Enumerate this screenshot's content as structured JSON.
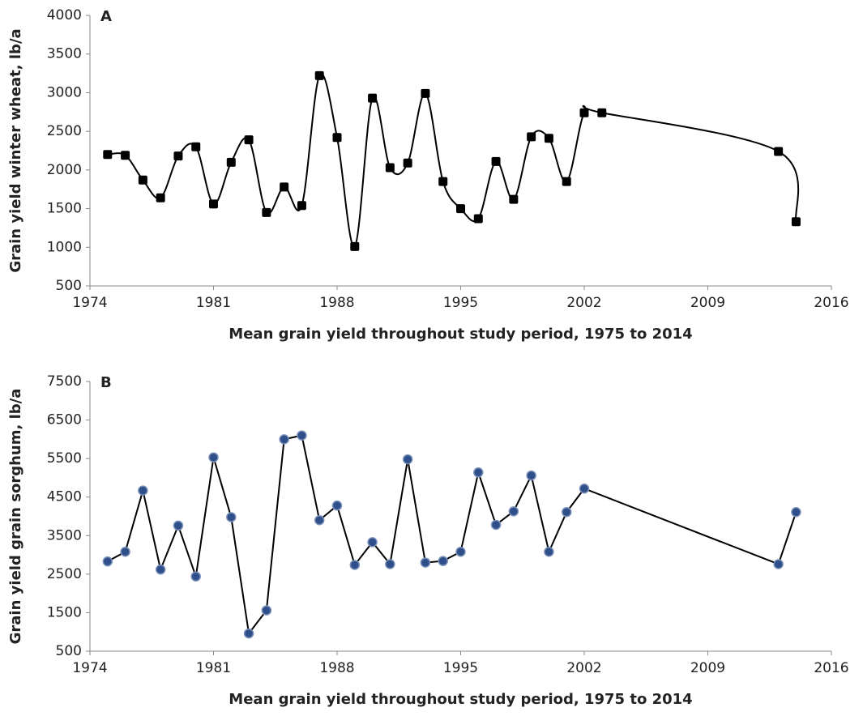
{
  "chart_data": [
    {
      "type": "line",
      "panel_label": "A",
      "smooth": true,
      "marker": "square",
      "color": "#000000",
      "marker_color": "#000000",
      "y_label": "Grain yield winter wheat, lb/a",
      "x_label": "Mean grain yield throughout study period, 1975 to 2014",
      "x": [
        1975,
        1976,
        1977,
        1978,
        1979,
        1980,
        1981,
        1982,
        1983,
        1984,
        1985,
        1986,
        1987,
        1988,
        1989,
        1990,
        1991,
        1992,
        1993,
        1994,
        1995,
        1996,
        1997,
        1998,
        1999,
        2000,
        2001,
        2002,
        2003,
        2013,
        2014
      ],
      "values": [
        2200,
        2190,
        1870,
        1640,
        2180,
        2300,
        1560,
        2100,
        2390,
        1450,
        1780,
        1540,
        3220,
        2420,
        1010,
        2930,
        2030,
        2090,
        2990,
        1850,
        1500,
        1370,
        2110,
        1620,
        2430,
        2410,
        1850,
        2740,
        2740,
        2240,
        1330
      ],
      "xlim": [
        1974,
        2016
      ],
      "xticks": [
        1974,
        1981,
        1988,
        1995,
        2002,
        2009,
        2016
      ],
      "ylim": [
        500,
        4000
      ],
      "yticks": [
        500,
        1000,
        1500,
        2000,
        2500,
        3000,
        3500,
        4000
      ]
    },
    {
      "type": "line",
      "panel_label": "B",
      "smooth": false,
      "marker": "circle",
      "color": "#000000",
      "marker_color": "#2f4f8a",
      "y_label": "Grain yield grain sorghum, lb/a",
      "x_label": "Mean grain yield throughout study period, 1975 to 2014",
      "x": [
        1975,
        1976,
        1977,
        1978,
        1979,
        1980,
        1981,
        1982,
        1983,
        1984,
        1985,
        1986,
        1987,
        1988,
        1989,
        1990,
        1991,
        1992,
        1993,
        1994,
        1995,
        1996,
        1997,
        1998,
        1999,
        2000,
        2001,
        2002,
        2013,
        2014
      ],
      "values": [
        2830,
        3080,
        4670,
        2620,
        3760,
        2440,
        5530,
        3980,
        960,
        1560,
        6000,
        6100,
        3900,
        4280,
        2740,
        3330,
        2760,
        5480,
        2800,
        2840,
        3080,
        5140,
        3780,
        4130,
        5060,
        3080,
        4110,
        4720,
        2760,
        4110
      ],
      "xlim": [
        1974,
        2016
      ],
      "xticks": [
        1974,
        1981,
        1988,
        1995,
        2002,
        2009,
        2016
      ],
      "ylim": [
        500,
        7500
      ],
      "yticks": [
        500,
        1500,
        2500,
        3500,
        4500,
        5500,
        6500,
        7500
      ]
    }
  ]
}
